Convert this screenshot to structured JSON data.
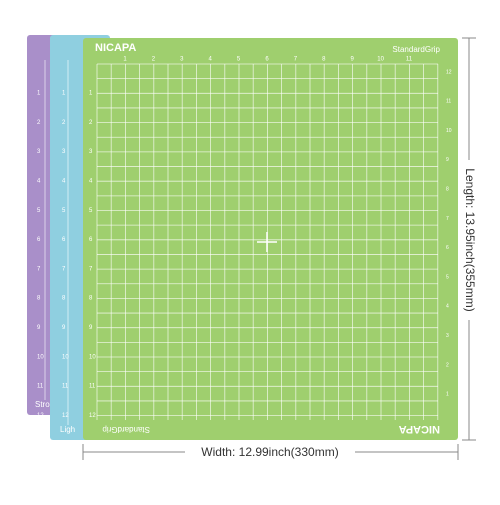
{
  "brand": "NICAPA",
  "grip": "StandardGrip",
  "back_mats": [
    {
      "label": "Stro",
      "color": "#a98fc9"
    },
    {
      "label": "Ligh",
      "color": "#8fcfe0"
    }
  ],
  "front_mat_color": "#9fcf6e",
  "top_ruler": [
    "1",
    "2",
    "3",
    "4",
    "5",
    "6",
    "7",
    "8",
    "9",
    "10",
    "11"
  ],
  "side_ruler": [
    "1",
    "2",
    "3",
    "4",
    "5",
    "6",
    "7",
    "8",
    "9",
    "10",
    "11",
    "12"
  ],
  "right_ruler": [
    "12",
    "11",
    "10",
    "9",
    "8",
    "7",
    "6",
    "5",
    "4",
    "3",
    "2",
    "1"
  ],
  "dimensions": {
    "length": "Length: 13.95inch(355mm)",
    "width": "Width: 12.99inch(330mm)"
  }
}
